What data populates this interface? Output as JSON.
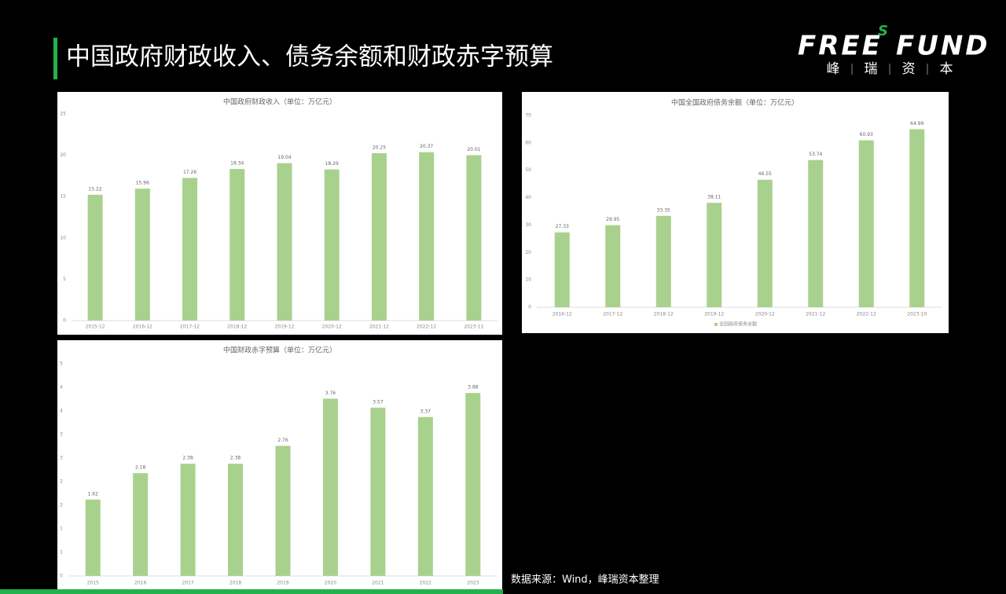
{
  "header": {
    "title": "中国政府财政收入、债务余额和财政赤字预算"
  },
  "logo": {
    "word1": "FREE",
    "mark": "S",
    "word2": "FUND",
    "chinese": [
      "峰",
      "瑞",
      "资",
      "本"
    ]
  },
  "source": "数据来源：Wind，峰瑞资本整理",
  "chart_data": [
    {
      "type": "bar",
      "title": "中国政府财政收入（单位：万亿元）",
      "categories": [
        "2015-12",
        "2016-12",
        "2017-12",
        "2018-12",
        "2019-12",
        "2020-12",
        "2021-12",
        "2022-12",
        "2023-11"
      ],
      "values": [
        15.22,
        15.96,
        17.26,
        18.34,
        19.04,
        18.29,
        20.25,
        20.37,
        20.01
      ],
      "color": "#a9d18e",
      "ylim": [
        0,
        25
      ],
      "yticks": [
        0,
        5,
        10,
        15,
        20,
        25
      ]
    },
    {
      "type": "bar",
      "title": "中国全国政府债务余额（单位：万亿元）",
      "categories": [
        "2016-12",
        "2017-12",
        "2018-12",
        "2019-12",
        "2020-12",
        "2021-12",
        "2022-12",
        "2023-10"
      ],
      "series": [
        {
          "name": "全国政府债务余额",
          "color": "#a9d18e",
          "values": [
            27.33,
            29.95,
            33.35,
            38.11,
            46.55,
            53.74,
            60.93,
            64.99
          ]
        }
      ],
      "ylim": [
        0,
        70
      ],
      "yticks": [
        0,
        10,
        20,
        30,
        40,
        50,
        60,
        70
      ],
      "legend": "bottom"
    },
    {
      "type": "bar",
      "title": "中国财政赤字预算（单位：万亿元）",
      "categories": [
        "2015",
        "2016",
        "2017",
        "2018",
        "2019",
        "2020",
        "2021",
        "2022",
        "2023"
      ],
      "values": [
        1.62,
        2.18,
        2.38,
        2.38,
        2.76,
        3.76,
        3.57,
        3.37,
        3.88
      ],
      "color": "#a9d18e",
      "ylim": [
        0,
        4.5
      ],
      "yticks": [
        0,
        {
          "value": 0.5,
          "label": "1"
        },
        {
          "value": 1,
          "label": "1"
        },
        {
          "value": 1.5,
          "label": "2"
        },
        {
          "value": 2,
          "label": "2"
        },
        {
          "value": 2.5,
          "label": "3"
        },
        {
          "value": 3,
          "label": "3"
        },
        {
          "value": 3.5,
          "label": "4"
        },
        {
          "value": 4,
          "label": "4"
        },
        {
          "value": 4.5,
          "label": "5"
        }
      ]
    }
  ]
}
